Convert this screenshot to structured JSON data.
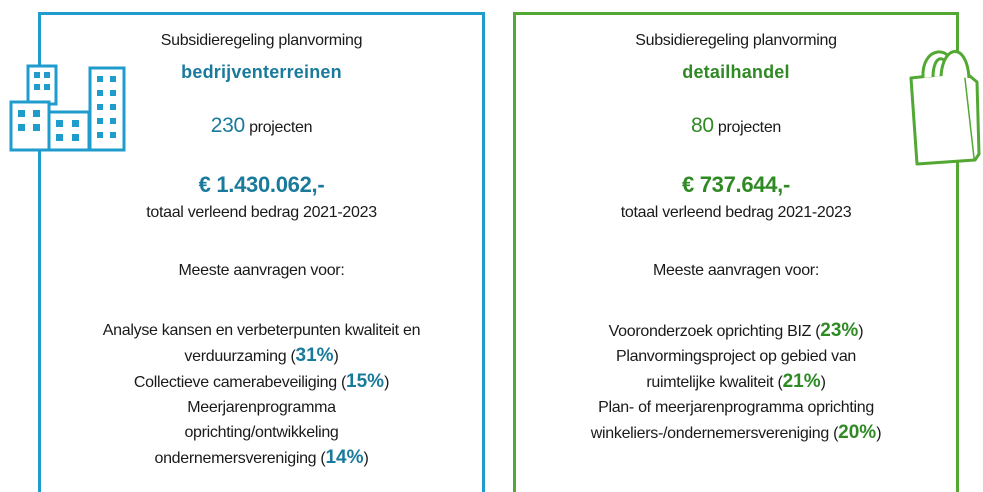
{
  "cards": [
    {
      "heading": "Subsidieregeling planvorming",
      "subject": "bedrijventerreinen",
      "count": "230",
      "count_unit": "projecten",
      "amount": "€ 1.430.062,-",
      "amount_label": "totaal verleend bedrag 2021-2023",
      "list_title": "Meeste aanvragen voor:",
      "items": [
        {
          "text": "Analyse kansen en verbeterpunten kwaliteit en verduurzaming (",
          "share": "31%",
          "close": ")"
        },
        {
          "text": "Collectieve camerabeveiliging (",
          "share": "15%",
          "close": ")"
        },
        {
          "text": "Meerjarenprogramma oprichting/ontwikkeling ondernemersvereniging (",
          "share": "14%",
          "close": ")"
        }
      ]
    },
    {
      "heading": "Subsidieregeling planvorming",
      "subject": "detailhandel",
      "count": "80",
      "count_unit": "projecten",
      "amount": "€ 737.644,-",
      "amount_label": "totaal verleend bedrag 2021-2023",
      "list_title": "Meeste aanvragen voor:",
      "items": [
        {
          "text": "Vooronderzoek oprichting BIZ (",
          "share": "23%",
          "close": ")"
        },
        {
          "text": "Planvormingsproject op gebied van ruimtelijke kwaliteit (",
          "share": "21%",
          "close": ")"
        },
        {
          "text": "Plan- of meerjarenprogramma oprichting winkeliers-/ondernemersvereniging (",
          "share": "20%",
          "close": ")"
        }
      ]
    }
  ]
}
